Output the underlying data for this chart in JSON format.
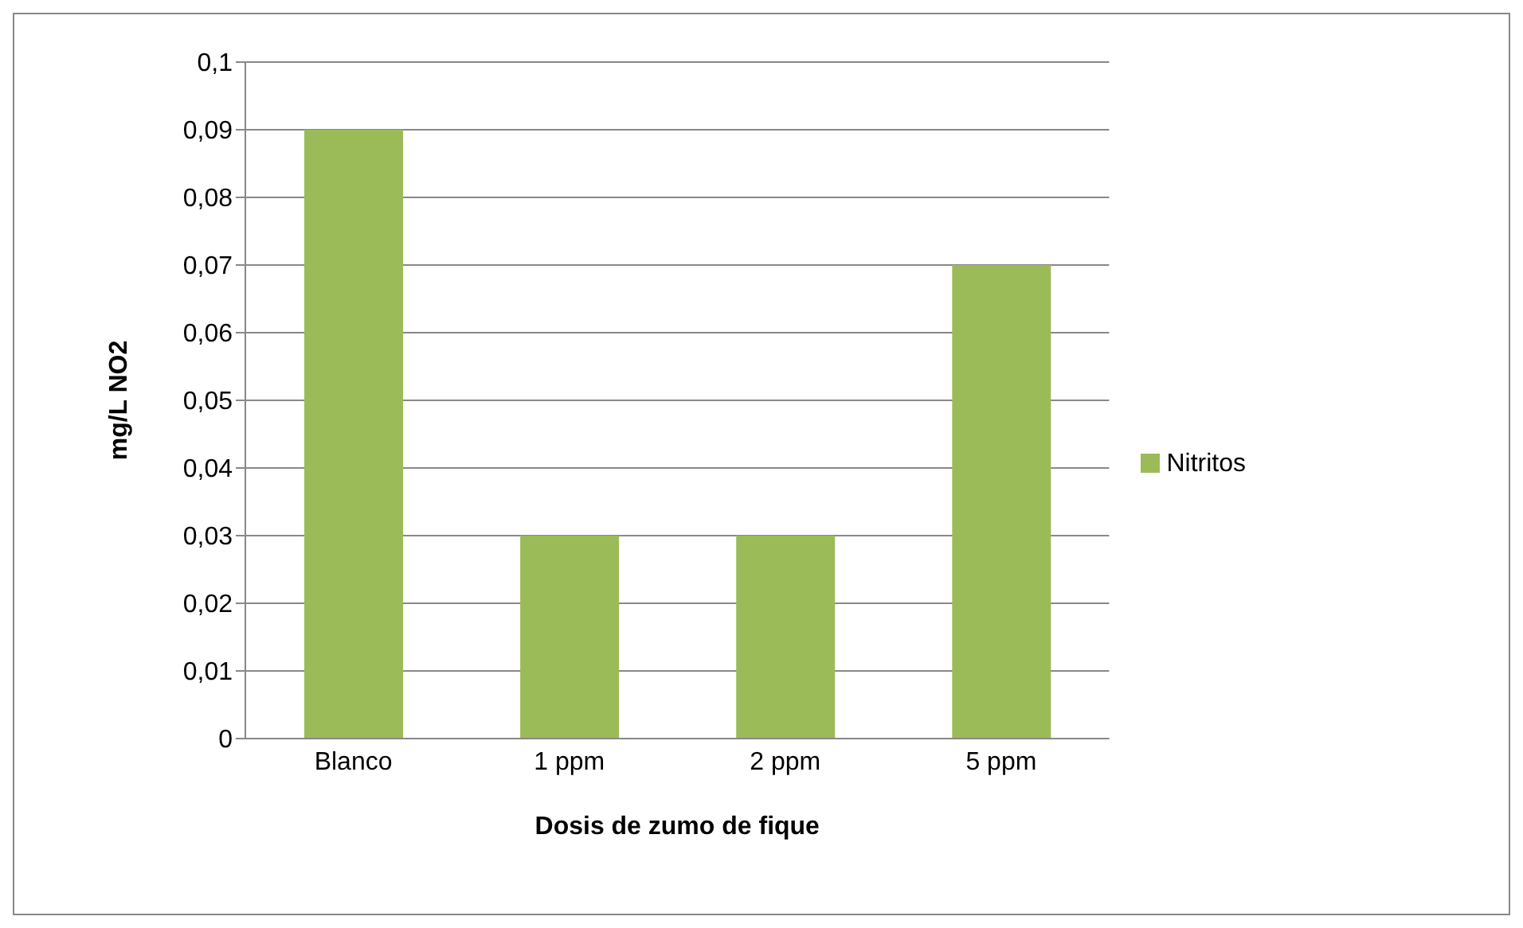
{
  "chart_data": {
    "type": "bar",
    "xlabel": "Dosis de zumo de fique",
    "ylabel": "mg/L NO2",
    "categories": [
      "Blanco",
      "1 ppm",
      "2 ppm",
      "5 ppm"
    ],
    "series": [
      {
        "name": "Nitritos",
        "color": "#9bbb59",
        "values": [
          0.09,
          0.03,
          0.03,
          0.07
        ]
      }
    ],
    "ylim": [
      0,
      0.1
    ],
    "yticks": [
      {
        "value": 0,
        "label": "0"
      },
      {
        "value": 0.01,
        "label": "0,01"
      },
      {
        "value": 0.02,
        "label": "0,02"
      },
      {
        "value": 0.03,
        "label": "0,03"
      },
      {
        "value": 0.04,
        "label": "0,04"
      },
      {
        "value": 0.05,
        "label": "0,05"
      },
      {
        "value": 0.06,
        "label": "0,06"
      },
      {
        "value": 0.07,
        "label": "0,07"
      },
      {
        "value": 0.08,
        "label": "0,08"
      },
      {
        "value": 0.09,
        "label": "0,09"
      },
      {
        "value": 0.1,
        "label": "0,1"
      }
    ],
    "grid": "y",
    "legend": "right"
  }
}
